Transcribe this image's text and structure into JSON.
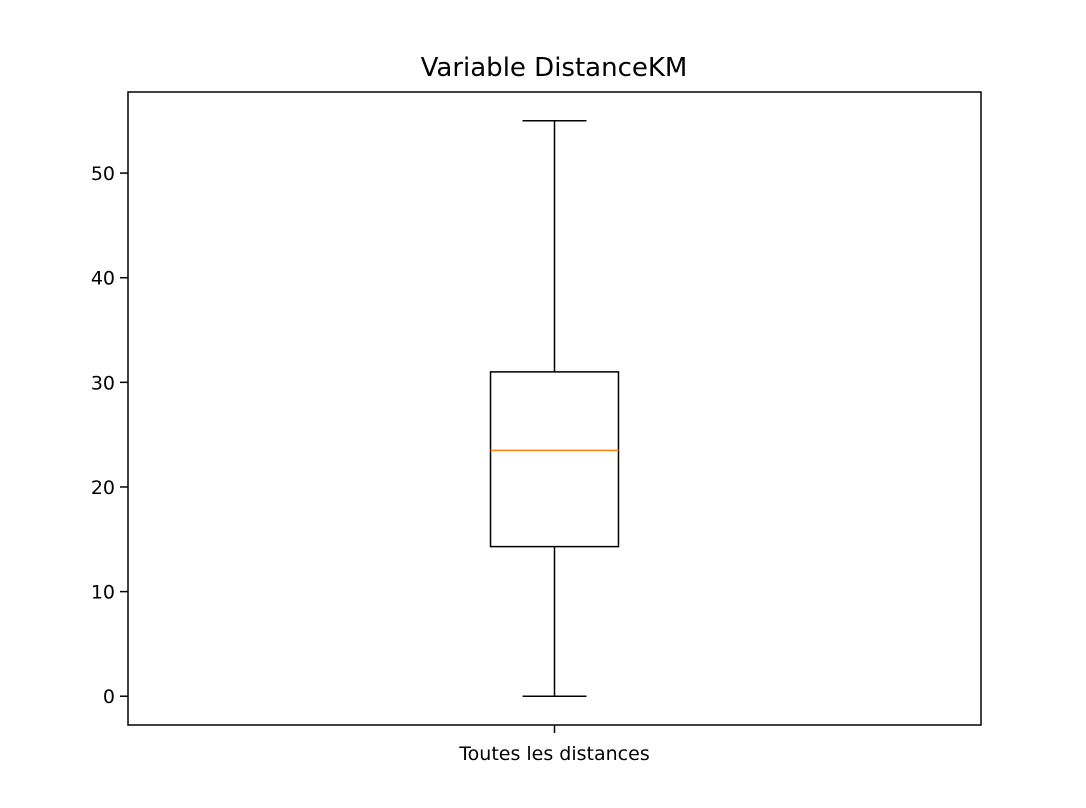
{
  "chart_data": {
    "type": "box",
    "title": "Variable DistanceKM",
    "xlabel": "",
    "ylabel": "",
    "categories": [
      "Toutes les distances"
    ],
    "series": [
      {
        "whisker_low": 0,
        "q1": 14.3,
        "median": 23.5,
        "q3": 31,
        "whisker_high": 55
      }
    ],
    "ylim": [
      -2.75,
      57.75
    ],
    "yticks": [
      0,
      10,
      20,
      30,
      40,
      50
    ],
    "grid": false,
    "colors": {
      "box": "#000000",
      "median": "#ff7f0e"
    }
  }
}
